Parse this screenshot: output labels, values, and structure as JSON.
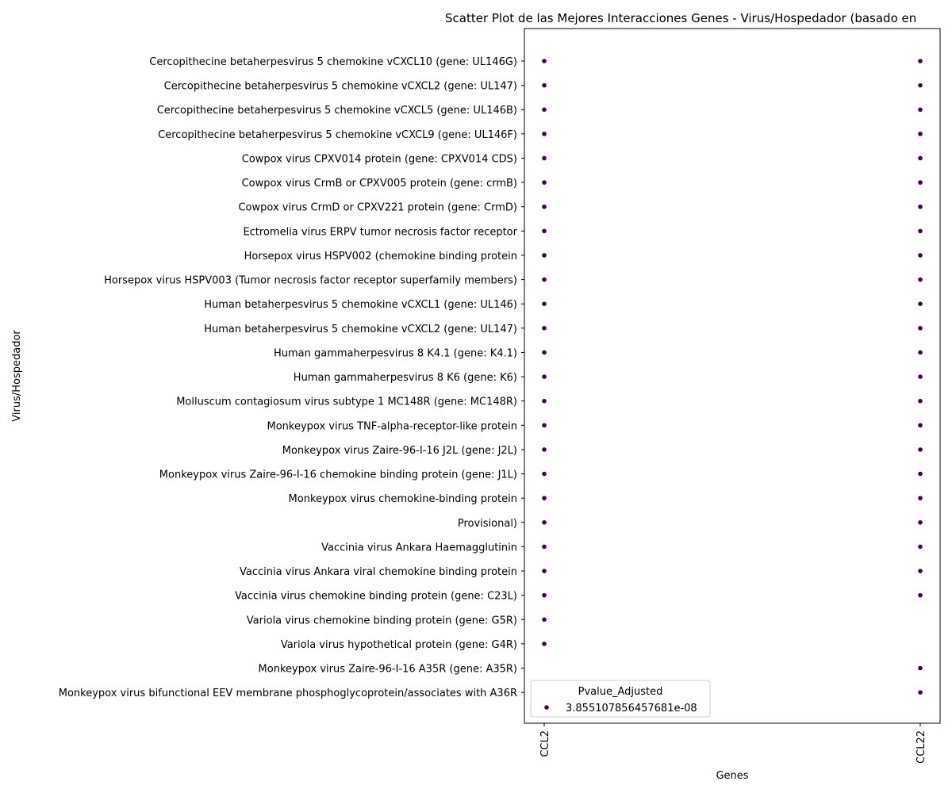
{
  "chart_data": {
    "type": "scatter",
    "title": "Scatter Plot de las Mejores Interacciones Genes - Virus/Hospedador (basado en",
    "xlabel": "Genes",
    "ylabel": "Virus/Hospedador",
    "categories_x": [
      "CCL2",
      "CCL22"
    ],
    "categories_y": [
      "Cercopithecine betaherpesvirus 5 chemokine vCXCL10 (gene: UL146G)",
      "Cercopithecine betaherpesvirus 5 chemokine vCXCL2 (gene: UL147)",
      "Cercopithecine betaherpesvirus 5 chemokine vCXCL5 (gene: UL146B)",
      "Cercopithecine betaherpesvirus 5 chemokine vCXCL9 (gene: UL146F)",
      "Cowpox virus CPXV014 protein (gene: CPXV014 CDS)",
      "Cowpox virus CrmB or CPXV005 protein (gene: crmB)",
      "Cowpox virus CrmD or CPXV221 protein (gene: CrmD)",
      "Ectromelia virus ERPV tumor necrosis factor receptor",
      "Horsepox virus HSPV002 (chemokine binding protein",
      "Horsepox virus HSPV003 (Tumor necrosis factor receptor superfamily members)",
      "Human betaherpesvirus 5 chemokine vCXCL1 (gene: UL146)",
      "Human betaherpesvirus 5 chemokine vCXCL2 (gene: UL147)",
      "Human gammaherpesvirus 8 K4.1 (gene: K4.1)",
      "Human gammaherpesvirus 8 K6 (gene: K6)",
      "Molluscum contagiosum virus subtype 1 MC148R (gene: MC148R)",
      "Monkeypox virus TNF-alpha-receptor-like protein",
      "Monkeypox virus Zaire-96-I-16 J2L (gene: J2L)",
      "Monkeypox virus Zaire-96-I-16 chemokine binding protein (gene: J1L)",
      "Monkeypox virus chemokine-binding protein",
      "Provisional)",
      "Vaccinia virus Ankara Haemagglutinin",
      "Vaccinia virus Ankara viral chemokine binding protein",
      "Vaccinia virus chemokine binding protein (gene: C23L)",
      "Variola virus chemokine binding protein (gene: G5R)",
      "Variola virus hypothetical protein (gene: G4R)",
      "Monkeypox virus Zaire-96-I-16 A35R (gene: A35R)",
      "Monkeypox virus bifunctional EEV membrane phosphoglycoprotein/associates with A36R"
    ],
    "points": [
      {
        "x": "CCL2",
        "y_index": [
          0,
          1,
          2,
          3,
          4,
          5,
          6,
          7,
          8,
          9,
          10,
          11,
          12,
          13,
          14,
          15,
          16,
          17,
          18,
          19,
          20,
          21,
          22,
          23,
          24
        ]
      },
      {
        "x": "CCL22",
        "y_index": [
          0,
          1,
          2,
          3,
          4,
          5,
          6,
          7,
          8,
          9,
          10,
          11,
          12,
          13,
          14,
          15,
          16,
          17,
          18,
          19,
          20,
          21,
          22,
          25,
          26
        ]
      }
    ],
    "legend": {
      "title": "Pvalue_Adjusted",
      "entries": [
        "3.855107856457681e-08"
      ],
      "placement": "lower-left"
    },
    "point_color": "#440154",
    "grid": false
  }
}
